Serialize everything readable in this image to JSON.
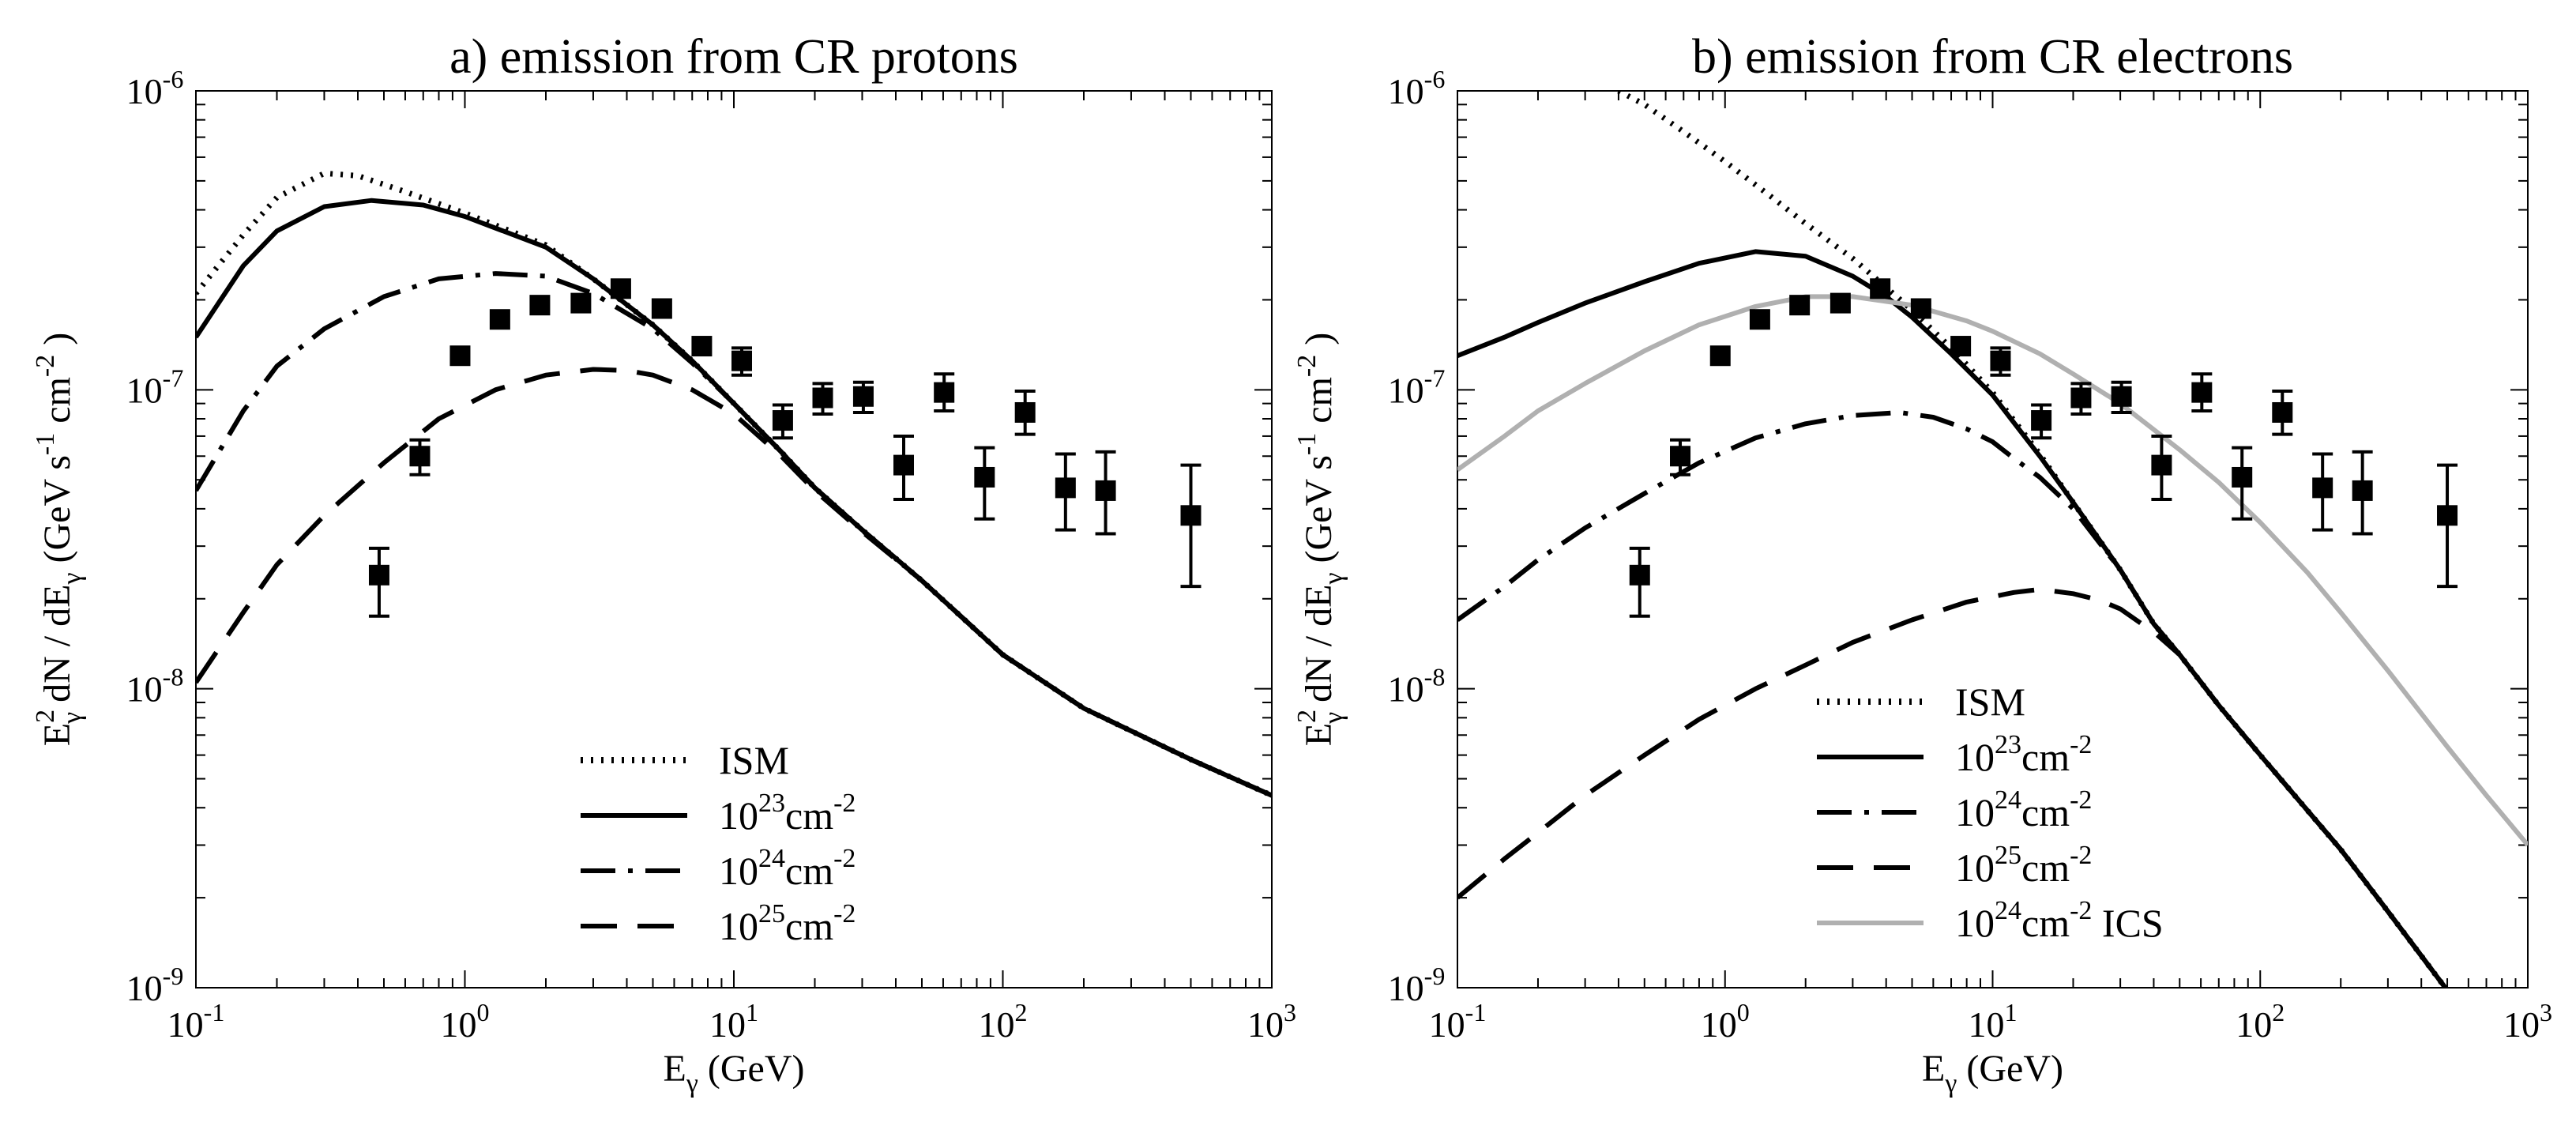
{
  "chart_data": [
    {
      "type": "line",
      "title": "a) emission from CR protons",
      "xlabel_parts": [
        "E",
        "γ",
        " (GeV)"
      ],
      "ylabel_parts": [
        "E",
        "2",
        "γ",
        " dN / dE",
        "γ",
        "  (GeV s",
        "-1",
        " cm",
        "-2",
        " )"
      ],
      "x_scale": "log",
      "y_scale": "log",
      "xlim": [
        0.1,
        1000
      ],
      "ylim": [
        1e-09,
        1e-06
      ],
      "x_ticks": [
        {
          "base": "10",
          "exp": "-1",
          "value": 0.1
        },
        {
          "base": "10",
          "exp": "0",
          "value": 1
        },
        {
          "base": "10",
          "exp": "1",
          "value": 10
        },
        {
          "base": "10",
          "exp": "2",
          "value": 100
        },
        {
          "base": "10",
          "exp": "3",
          "value": 1000
        }
      ],
      "y_ticks": [
        {
          "base": "10",
          "exp": "-9",
          "value": 1e-09
        },
        {
          "base": "10",
          "exp": "-8",
          "value": 1e-08
        },
        {
          "base": "10",
          "exp": "-7",
          "value": 1e-07
        },
        {
          "base": "10",
          "exp": "-6",
          "value": 1e-06
        }
      ],
      "legend_position": "bottom-center",
      "series": [
        {
          "name": "ISM",
          "legend_parts": [
            "ISM"
          ],
          "style": "dotted",
          "color": "#000000",
          "x": [
            0.1,
            0.15,
            0.2,
            0.3,
            0.4,
            0.6,
            1.0,
            2.0,
            3.0,
            5.0,
            7.0,
            10.0,
            15.0,
            20.0,
            30.0,
            50.0,
            100.0,
            200.0,
            500.0,
            1000.0
          ],
          "y": [
            2.1e-07,
            3.3e-07,
            4.4e-07,
            5.3e-07,
            5.2e-07,
            4.6e-07,
            3.9e-07,
            3.05e-07,
            2.35e-07,
            1.65e-07,
            1.25e-07,
            9e-08,
            6.2e-08,
            4.7e-08,
            3.4e-08,
            2.3e-08,
            1.3e-08,
            8.6e-09,
            5.8e-09,
            4.4e-09
          ]
        },
        {
          "name": "10^23 cm^-2",
          "legend_parts": [
            "10",
            "23",
            "cm",
            "-2"
          ],
          "style": "solid",
          "color": "#000000",
          "x": [
            0.1,
            0.15,
            0.2,
            0.3,
            0.45,
            0.7,
            1.0,
            2.0,
            3.0,
            5.0,
            7.0,
            10.0,
            15.0,
            20.0,
            30.0,
            50.0,
            100.0,
            200.0,
            500.0,
            1000.0
          ],
          "y": [
            1.5e-07,
            2.6e-07,
            3.4e-07,
            4.1e-07,
            4.3e-07,
            4.15e-07,
            3.8e-07,
            3e-07,
            2.35e-07,
            1.65e-07,
            1.25e-07,
            9e-08,
            6.2e-08,
            4.7e-08,
            3.4e-08,
            2.3e-08,
            1.3e-08,
            8.6e-09,
            5.8e-09,
            4.4e-09
          ]
        },
        {
          "name": "10^24 cm^-2",
          "legend_parts": [
            "10",
            "24",
            "cm",
            "-2"
          ],
          "style": "dashdot",
          "color": "#000000",
          "x": [
            0.1,
            0.15,
            0.2,
            0.3,
            0.5,
            0.8,
            1.3,
            2.0,
            3.0,
            5.0,
            7.0,
            10.0,
            15.0,
            20.0,
            30.0,
            50.0,
            100.0,
            200.0,
            500.0,
            1000.0
          ],
          "y": [
            4.6e-08,
            8.5e-08,
            1.2e-07,
            1.6e-07,
            2.05e-07,
            2.35e-07,
            2.45e-07,
            2.4e-07,
            2.1e-07,
            1.6e-07,
            1.23e-07,
            9e-08,
            6.2e-08,
            4.7e-08,
            3.4e-08,
            2.3e-08,
            1.3e-08,
            8.6e-09,
            5.8e-09,
            4.4e-09
          ]
        },
        {
          "name": "10^25 cm^-2",
          "legend_parts": [
            "10",
            "25",
            "cm",
            "-2"
          ],
          "style": "dashed",
          "color": "#000000",
          "x": [
            0.1,
            0.15,
            0.2,
            0.3,
            0.5,
            0.8,
            1.3,
            2.0,
            3.0,
            4.0,
            5.0,
            7.0,
            10.0,
            15.0,
            20.0,
            30.0,
            50.0,
            100.0,
            200.0,
            500.0,
            1000.0
          ],
          "y": [
            1.05e-08,
            1.8e-08,
            2.6e-08,
            3.8e-08,
            5.7e-08,
            8e-08,
            1e-07,
            1.12e-07,
            1.17e-07,
            1.16e-07,
            1.12e-07,
            1e-07,
            8.3e-08,
            6e-08,
            4.6e-08,
            3.35e-08,
            2.3e-08,
            1.3e-08,
            8.6e-09,
            5.8e-09,
            4.4e-09
          ]
        }
      ],
      "data_points": {
        "x": [
          0.48,
          0.68,
          0.96,
          1.35,
          1.9,
          2.7,
          3.8,
          5.4,
          7.6,
          10.7,
          15.2,
          21.4,
          30.3,
          42.8,
          60.5,
          85.5,
          121,
          171,
          241,
          500
        ],
        "y": [
          2.4e-08,
          6e-08,
          1.3e-07,
          1.72e-07,
          1.92e-07,
          1.95e-07,
          2.18e-07,
          1.87e-07,
          1.4e-07,
          1.25e-07,
          7.9e-08,
          9.4e-08,
          9.5e-08,
          5.6e-08,
          9.8e-08,
          5.1e-08,
          8.4e-08,
          4.7e-08,
          4.6e-08,
          3.8e-08
        ],
        "y_low": [
          1.75e-08,
          5.2e-08,
          null,
          null,
          null,
          null,
          null,
          null,
          null,
          1.12e-07,
          6.9e-08,
          8.3e-08,
          8.4e-08,
          4.3e-08,
          8.5e-08,
          3.7e-08,
          7.1e-08,
          3.4e-08,
          3.3e-08,
          2.2e-08
        ],
        "y_high": [
          2.95e-08,
          6.8e-08,
          null,
          null,
          null,
          null,
          null,
          null,
          null,
          1.38e-07,
          8.9e-08,
          1.05e-07,
          1.06e-07,
          7e-08,
          1.13e-07,
          6.4e-08,
          9.9e-08,
          6.1e-08,
          6.2e-08,
          5.6e-08
        ]
      }
    },
    {
      "type": "line",
      "title": "b) emission from CR electrons",
      "xlabel_parts": [
        "E",
        "γ",
        " (GeV)"
      ],
      "ylabel_parts": [
        "E",
        "2",
        "γ",
        " dN / dE",
        "γ",
        "  (GeV s",
        "-1",
        " cm",
        "-2",
        " )"
      ],
      "x_scale": "log",
      "y_scale": "log",
      "xlim": [
        0.1,
        1000
      ],
      "ylim": [
        1e-09,
        1e-06
      ],
      "x_ticks": [
        {
          "base": "10",
          "exp": "-1",
          "value": 0.1
        },
        {
          "base": "10",
          "exp": "0",
          "value": 1
        },
        {
          "base": "10",
          "exp": "1",
          "value": 10
        },
        {
          "base": "10",
          "exp": "2",
          "value": 100
        },
        {
          "base": "10",
          "exp": "3",
          "value": 1000
        }
      ],
      "y_ticks": [
        {
          "base": "10",
          "exp": "-9",
          "value": 1e-09
        },
        {
          "base": "10",
          "exp": "-8",
          "value": 1e-08
        },
        {
          "base": "10",
          "exp": "-7",
          "value": 1e-07
        },
        {
          "base": "10",
          "exp": "-6",
          "value": 1e-06
        }
      ],
      "legend_position": "bottom-center",
      "series": [
        {
          "name": "ISM",
          "legend_parts": [
            "ISM"
          ],
          "style": "dotted",
          "color": "#000000",
          "x": [
            0.4,
            0.5,
            0.7,
            1.0,
            1.5,
            2.0,
            3.0,
            4.0,
            5.0,
            7.0,
            10.0,
            15.0,
            20.0,
            30.0,
            40.0,
            50.0,
            70.0,
            100.0,
            200.0,
            300.0,
            500.0
          ],
          "y": [
            1e-06,
            9e-07,
            7.3e-07,
            5.8e-07,
            4.4e-07,
            3.6e-07,
            2.75e-07,
            2.2e-07,
            1.85e-07,
            1.38e-07,
            9.8e-08,
            6.1e-08,
            4.2e-08,
            2.5e-08,
            1.65e-08,
            1.3e-08,
            8.8e-09,
            6e-09,
            2.9e-09,
            1.8e-09,
            9.8e-10
          ]
        },
        {
          "name": "10^23 cm^-2",
          "legend_parts": [
            "10",
            "23",
            "cm",
            "-2"
          ],
          "style": "solid",
          "color": "#000000",
          "x": [
            0.1,
            0.15,
            0.2,
            0.3,
            0.5,
            0.8,
            1.3,
            2.0,
            3.0,
            4.0,
            5.0,
            7.0,
            10.0,
            15.0,
            20.0,
            30.0,
            40.0,
            50.0,
            70.0,
            100.0,
            200.0,
            300.0,
            500.0
          ],
          "y": [
            1.3e-07,
            1.5e-07,
            1.68e-07,
            1.95e-07,
            2.3e-07,
            2.65e-07,
            2.9e-07,
            2.8e-07,
            2.4e-07,
            2.05e-07,
            1.75e-07,
            1.32e-07,
            9.6e-08,
            6e-08,
            4.2e-08,
            2.5e-08,
            1.65e-08,
            1.3e-08,
            8.8e-09,
            6e-09,
            2.9e-09,
            1.8e-09,
            9.8e-10
          ]
        },
        {
          "name": "10^24 cm^-2",
          "legend_parts": [
            "10",
            "24",
            "cm",
            "-2"
          ],
          "style": "dashdot",
          "color": "#000000",
          "x": [
            0.1,
            0.15,
            0.2,
            0.3,
            0.5,
            0.8,
            1.3,
            2.0,
            3.0,
            4.5,
            6.0,
            8.0,
            10.0,
            12.0,
            15.0,
            20.0,
            30.0,
            40.0,
            50.0,
            70.0,
            100.0,
            200.0,
            300.0,
            500.0
          ],
          "y": [
            1.7e-08,
            2.2e-08,
            2.7e-08,
            3.45e-08,
            4.5e-08,
            5.7e-08,
            6.9e-08,
            7.7e-08,
            8.2e-08,
            8.4e-08,
            8.1e-08,
            7.4e-08,
            6.7e-08,
            5.9e-08,
            5.1e-08,
            4e-08,
            2.5e-08,
            1.65e-08,
            1.3e-08,
            8.8e-09,
            6e-09,
            2.9e-09,
            1.8e-09,
            9.8e-10
          ]
        },
        {
          "name": "10^25 cm^-2",
          "legend_parts": [
            "10",
            "25",
            "cm",
            "-2"
          ],
          "style": "dashed",
          "color": "#000000",
          "x": [
            0.1,
            0.15,
            0.2,
            0.3,
            0.5,
            0.8,
            1.3,
            2.0,
            3.0,
            5.0,
            8.0,
            12.0,
            15.0,
            20.0,
            25.0,
            30.0,
            35.0,
            40.0,
            50.0,
            70.0,
            100.0,
            200.0,
            300.0,
            500.0
          ],
          "y": [
            2e-09,
            2.7e-09,
            3.3e-09,
            4.4e-09,
            6e-09,
            7.9e-09,
            1e-08,
            1.2e-08,
            1.43e-08,
            1.7e-08,
            1.95e-08,
            2.1e-08,
            2.15e-08,
            2.08e-08,
            1.98e-08,
            1.85e-08,
            1.68e-08,
            1.55e-08,
            1.3e-08,
            8.8e-09,
            6e-09,
            2.9e-09,
            1.8e-09,
            9.8e-10
          ]
        },
        {
          "name": "10^24 cm^-2 ICS",
          "legend_parts": [
            "10",
            "24",
            "cm",
            "-2",
            " ICS"
          ],
          "style": "solid",
          "color": "#b0b0b0",
          "x": [
            0.1,
            0.15,
            0.2,
            0.3,
            0.5,
            0.8,
            1.3,
            2.0,
            3.0,
            5.0,
            8.0,
            10.0,
            15.0,
            20.0,
            30.0,
            50.0,
            70.0,
            100.0,
            150.0,
            200.0,
            300.0,
            500.0,
            700.0,
            1000.0
          ],
          "y": [
            5.4e-08,
            7e-08,
            8.5e-08,
            1.05e-07,
            1.35e-07,
            1.65e-07,
            1.9e-07,
            2.05e-07,
            2.05e-07,
            1.92e-07,
            1.7e-07,
            1.57e-07,
            1.32e-07,
            1.13e-07,
            9e-08,
            6.3e-08,
            4.9e-08,
            3.6e-08,
            2.45e-08,
            1.8e-08,
            1.15e-08,
            6.4e-09,
            4.4e-09,
            3e-09
          ]
        }
      ],
      "data_points": {
        "x": [
          0.48,
          0.68,
          0.96,
          1.35,
          1.9,
          2.7,
          3.8,
          5.4,
          7.6,
          10.7,
          15.2,
          21.4,
          30.3,
          42.8,
          60.5,
          85.5,
          121,
          171,
          241,
          500
        ],
        "y": [
          2.4e-08,
          6e-08,
          1.3e-07,
          1.72e-07,
          1.92e-07,
          1.95e-07,
          2.18e-07,
          1.87e-07,
          1.4e-07,
          1.25e-07,
          7.9e-08,
          9.4e-08,
          9.5e-08,
          5.6e-08,
          9.8e-08,
          5.1e-08,
          8.4e-08,
          4.7e-08,
          4.6e-08,
          3.8e-08
        ],
        "y_low": [
          1.75e-08,
          5.2e-08,
          null,
          null,
          null,
          null,
          null,
          null,
          null,
          1.12e-07,
          6.9e-08,
          8.3e-08,
          8.4e-08,
          4.3e-08,
          8.5e-08,
          3.7e-08,
          7.1e-08,
          3.4e-08,
          3.3e-08,
          2.2e-08
        ],
        "y_high": [
          2.95e-08,
          6.8e-08,
          null,
          null,
          null,
          null,
          null,
          null,
          null,
          1.38e-07,
          8.9e-08,
          1.05e-07,
          1.06e-07,
          7e-08,
          1.13e-07,
          6.4e-08,
          9.9e-08,
          6.1e-08,
          6.2e-08,
          5.6e-08
        ]
      }
    }
  ]
}
